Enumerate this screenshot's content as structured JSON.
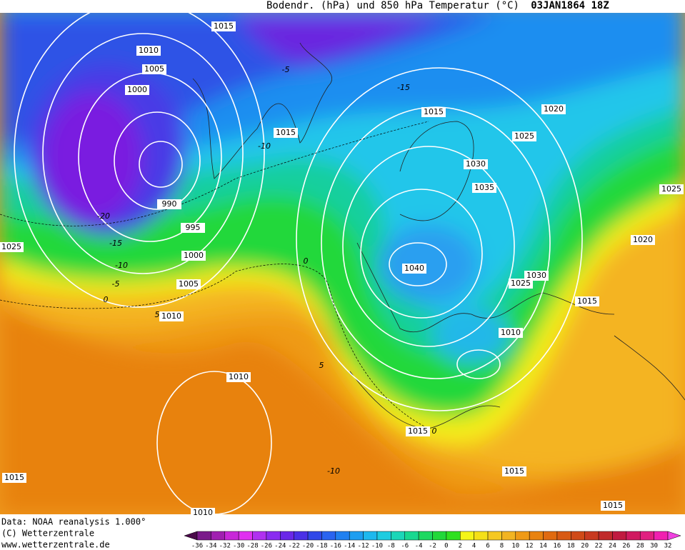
{
  "header": {
    "title": "Bodendr. (hPa)  und 850 hPa Temperatur (°C)",
    "date": "03JAN1864 18Z"
  },
  "footer": [
    "Data: NOAA reanalysis 1.000°",
    "(C) Wetterzentrale",
    "www.wetterzentrale.de"
  ],
  "isobar_labels": [
    "1015",
    "1010",
    "1005",
    "1000",
    "990",
    "995",
    "1000",
    "1005",
    "1010",
    "1025",
    "1015",
    "1015",
    "1020",
    "1025",
    "1030",
    "1035",
    "1040",
    "1030",
    "1025",
    "1025",
    "1020",
    "1015",
    "1010",
    "1010",
    "1015",
    "1015",
    "1015",
    "1015",
    "1010"
  ],
  "isotherm_labels": [
    "-15",
    "-10",
    "-20",
    "-15",
    "-10",
    "-5",
    "0",
    "5",
    "0",
    "5",
    "-10",
    "0",
    "-5"
  ],
  "colorbar_labels": [
    -36,
    -34,
    -32,
    -30,
    -28,
    -26,
    -24,
    -22,
    -20,
    -18,
    -16,
    -14,
    -12,
    -10,
    -8,
    -6,
    -4,
    -2,
    0,
    2,
    4,
    6,
    8,
    10,
    12,
    14,
    16,
    18,
    20,
    22,
    24,
    26,
    28,
    30,
    32
  ]
}
